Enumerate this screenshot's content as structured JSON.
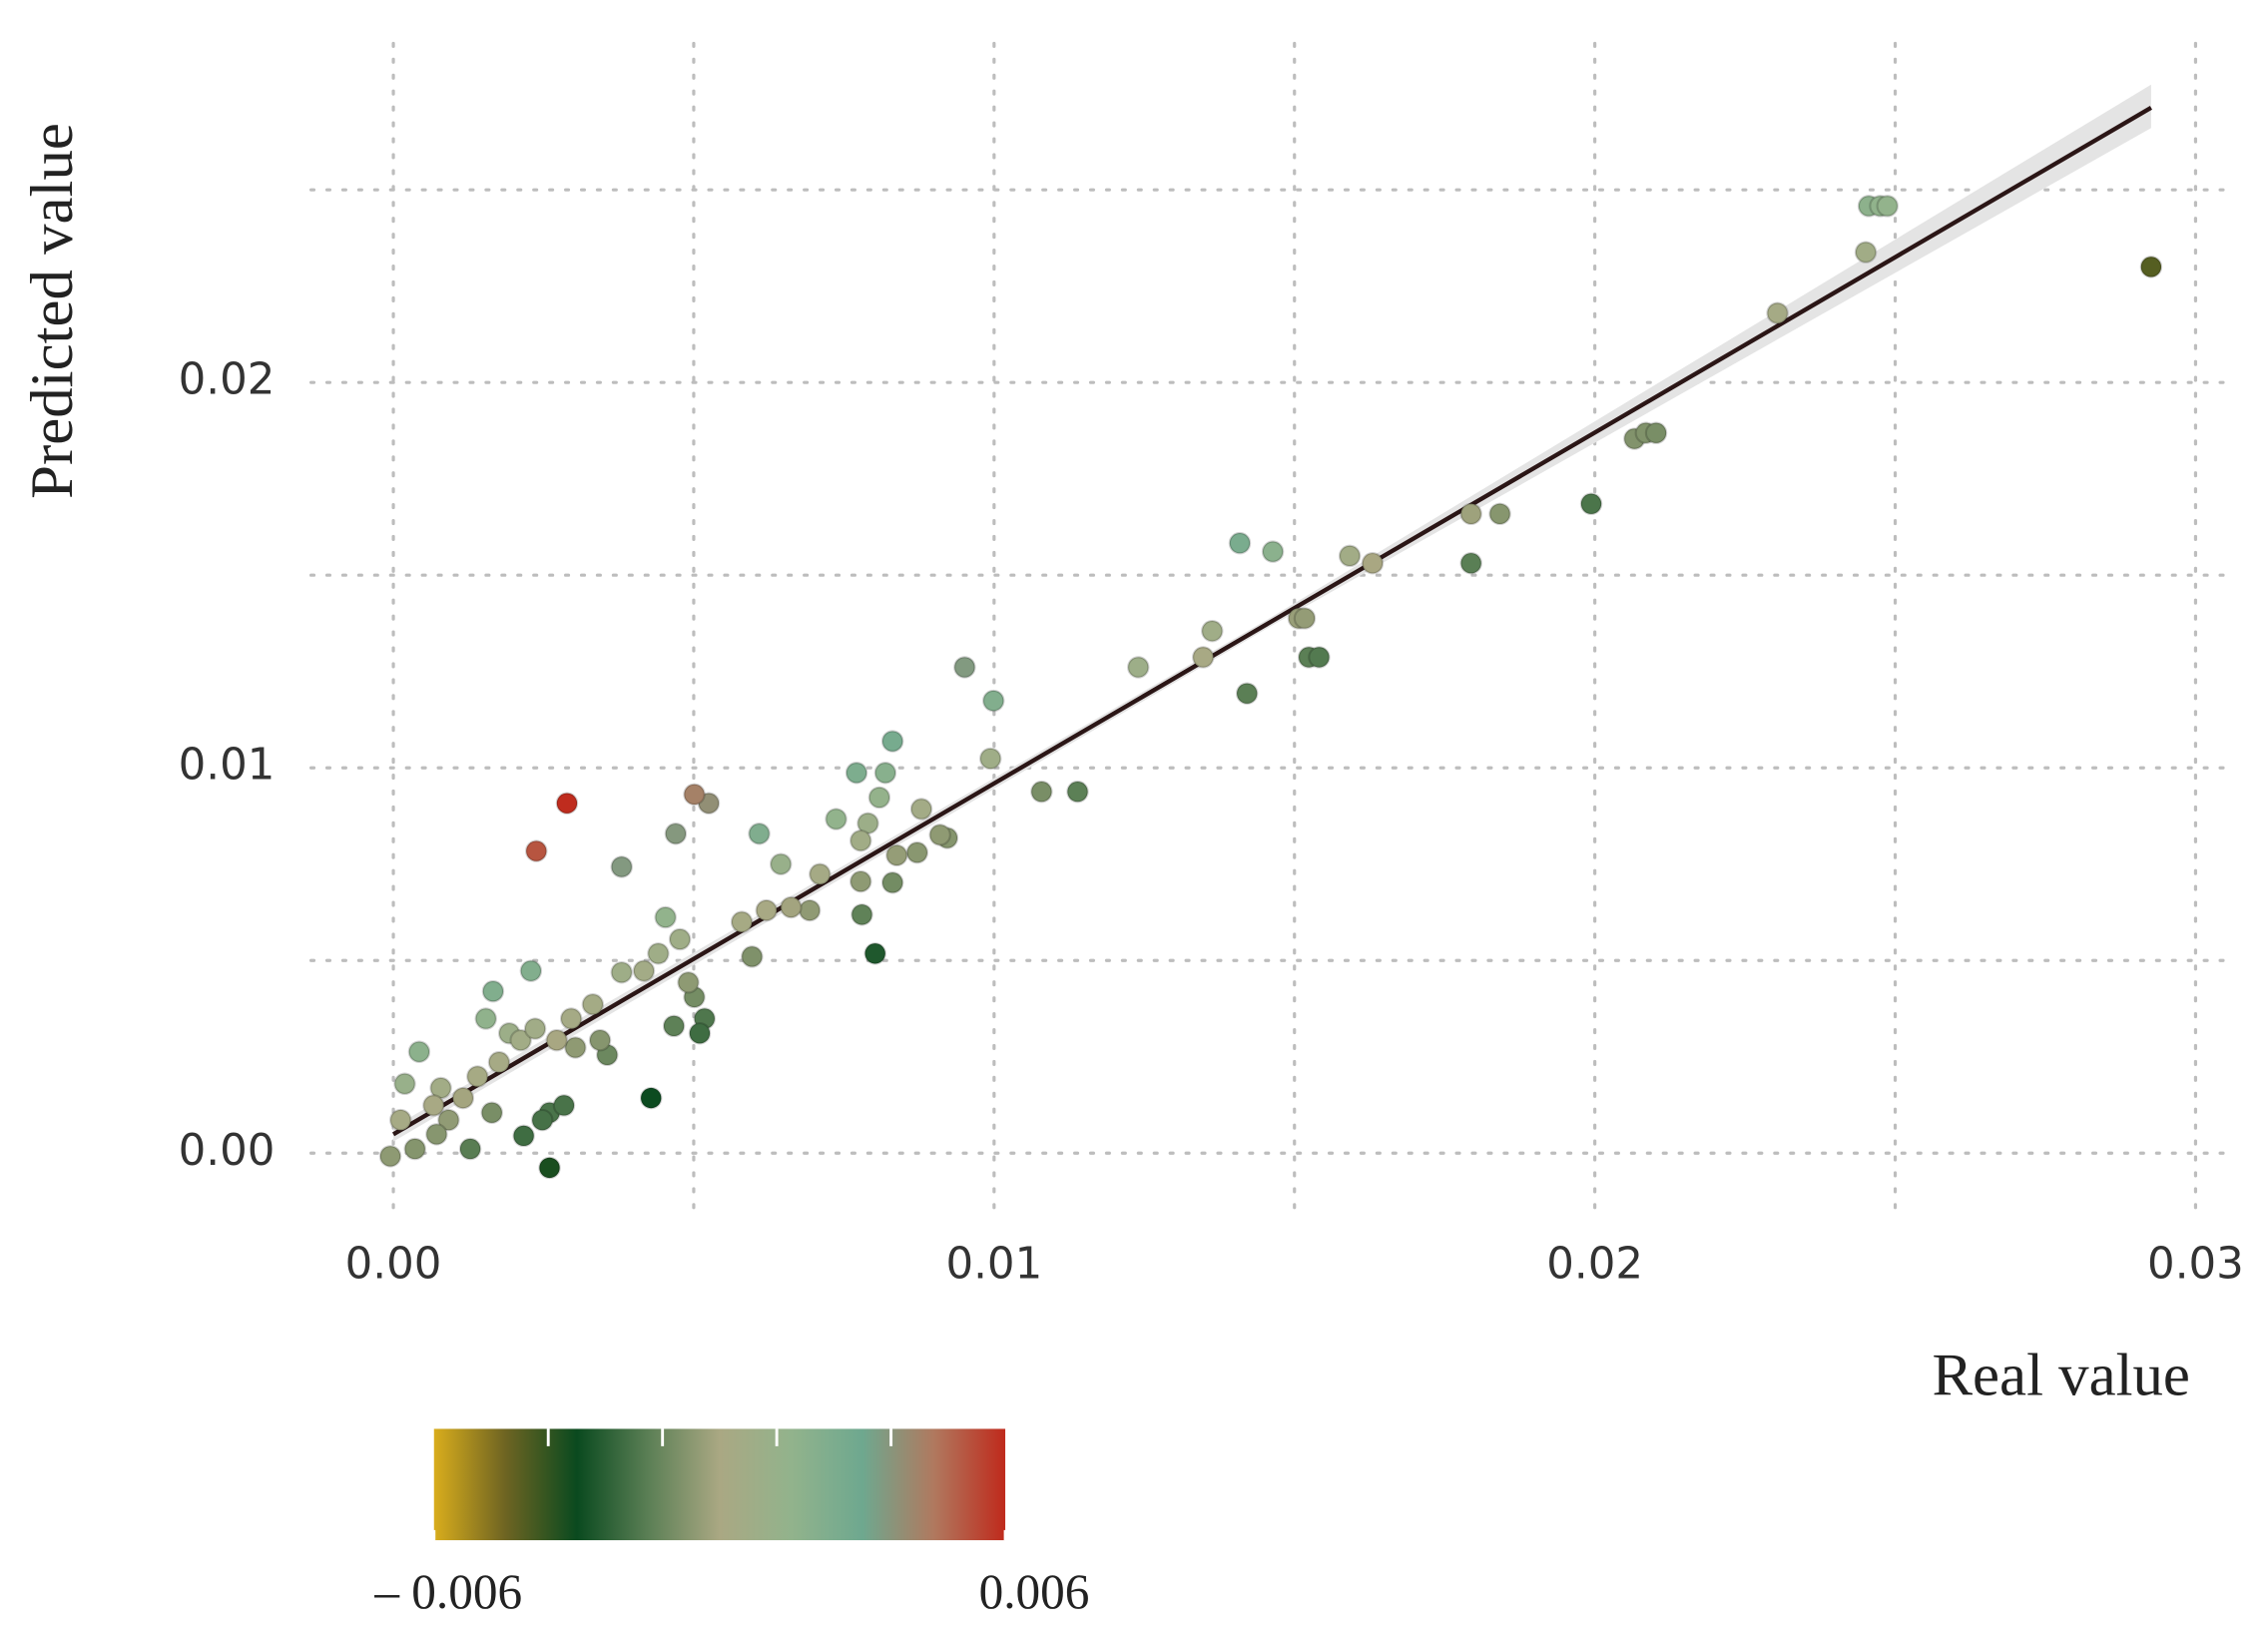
{
  "chart_data": {
    "type": "scatter",
    "x_label": "Real value",
    "y_label": "Predicted value",
    "x": [
      0.02926,
      0.02456,
      0.02475,
      0.02487,
      0.02451,
      0.02304,
      0.02066,
      0.02085,
      0.02102,
      0.01994,
      0.01842,
      0.01794,
      0.01794,
      0.0163,
      0.01592,
      0.01464,
      0.01409,
      0.01507,
      0.01517,
      0.01524,
      0.01541,
      0.01421,
      0.01363,
      0.01348,
      0.0124,
      0.01139,
      0.01079,
      0.00999,
      0.00994,
      0.00951,
      0.00922,
      0.00879,
      0.00872,
      0.00831,
      0.00819,
      0.00809,
      0.0079,
      0.00778,
      0.00778,
      0.0078,
      0.00831,
      0.00771,
      0.00737,
      0.0071,
      0.00693,
      0.00662,
      0.00645,
      0.00621,
      0.00609,
      0.00597,
      0.0058,
      0.00525,
      0.00501,
      0.00518,
      0.0051,
      0.00501,
      0.00491,
      0.00477,
      0.00453,
      0.00441,
      0.0047,
      0.00467,
      0.00429,
      0.0038,
      0.0038,
      0.00356,
      0.00332,
      0.00303,
      0.00289,
      0.00238,
      0.00229,
      0.00166,
      0.0026,
      0.0026,
      0.00284,
      0.00248,
      0.00217,
      0.00193,
      0.00176,
      0.00154,
      0.0014,
      0.00128,
      0.00116,
      0.00092,
      0.00072,
      0.00043,
      0.00036,
      0.00019,
      0.00012,
      -5e-05,
      0.00079,
      0.00212,
      0.00236,
      0.00272,
      0.00296,
      0.00344,
      0.00417,
      0.00838,
      0.0091,
      0.00802,
      0.00164,
      0.00067
    ],
    "y": [
      0.023,
      0.02458,
      0.02458,
      0.02458,
      0.02338,
      0.0218,
      0.01854,
      0.01869,
      0.01869,
      0.01685,
      0.01659,
      0.01659,
      0.01531,
      0.01531,
      0.0155,
      0.01561,
      0.01583,
      0.01388,
      0.01388,
      0.01287,
      0.01287,
      0.01193,
      0.01355,
      0.01287,
      0.01261,
      0.00938,
      0.00938,
      0.01174,
      0.01024,
      0.01261,
      0.00818,
      0.00893,
      0.0078,
      0.01069,
      0.00987,
      0.00923,
      0.00856,
      0.00811,
      0.00705,
      0.00619,
      0.00702,
      0.00987,
      0.00867,
      0.00724,
      0.0063,
      0.00638,
      0.0075,
      0.0063,
      0.00829,
      0.0051,
      0.006,
      0.00908,
      0.00931,
      0.00349,
      0.00311,
      0.00405,
      0.00443,
      0.00555,
      0.00612,
      0.00518,
      0.00829,
      0.0033,
      0.00143,
      0.00743,
      0.00469,
      0.00255,
      0.00386,
      0.00274,
      0.00908,
      0.00784,
      0.00473,
      0.0042,
      -0.00038,
      0.00105,
      0.00124,
      0.00086,
      0.00045,
      0.00311,
      0.00236,
      0.00349,
      0.00199,
      0.00011,
      0.00143,
      0.00086,
      0.00049,
      0.00263,
      0.00011,
      0.0018,
      0.00086,
      -8e-05,
      0.00169,
      0.00293,
      0.00323,
      0.00293,
      0.00349,
      0.00293,
      0.00473,
      0.00773,
      0.00826,
      0.00518,
      0.00105,
      0.00124
    ],
    "xlim": [
      -0.00137,
      0.03053
    ],
    "ylim": [
      -0.0016,
      0.0288
    ],
    "xticks": [
      {
        "value": 0,
        "label": "0.00"
      },
      0.01,
      0.02,
      0.03
    ],
    "yticks": [
      {
        "value": 0,
        "label": "0.00"
      },
      0.01,
      0.02
    ],
    "minor_grid_x": [
      0.005,
      0.015,
      0.025
    ],
    "minor_grid_y": [
      0.005,
      0.015,
      0.025
    ],
    "grid": true,
    "fit_line": {
      "x": [
        0,
        0.02926
      ],
      "y": [
        0.00049,
        0.02713
      ],
      "color": "#2b1616",
      "band_color": "#e4e4e4"
    },
    "colorbar": {
      "limits": [
        -0.006,
        0.006
      ],
      "ticks": [
        {
          "value": -0.006,
          "label": "– 0.006"
        },
        0.006
      ],
      "colors": [
        "#d9ad1c",
        "#6e6422",
        "#0a4a1f",
        "#5b7f55",
        "#aaa883",
        "#92b38c",
        "#6ea88f",
        "#b0795f",
        "#bf2a1c"
      ]
    }
  }
}
